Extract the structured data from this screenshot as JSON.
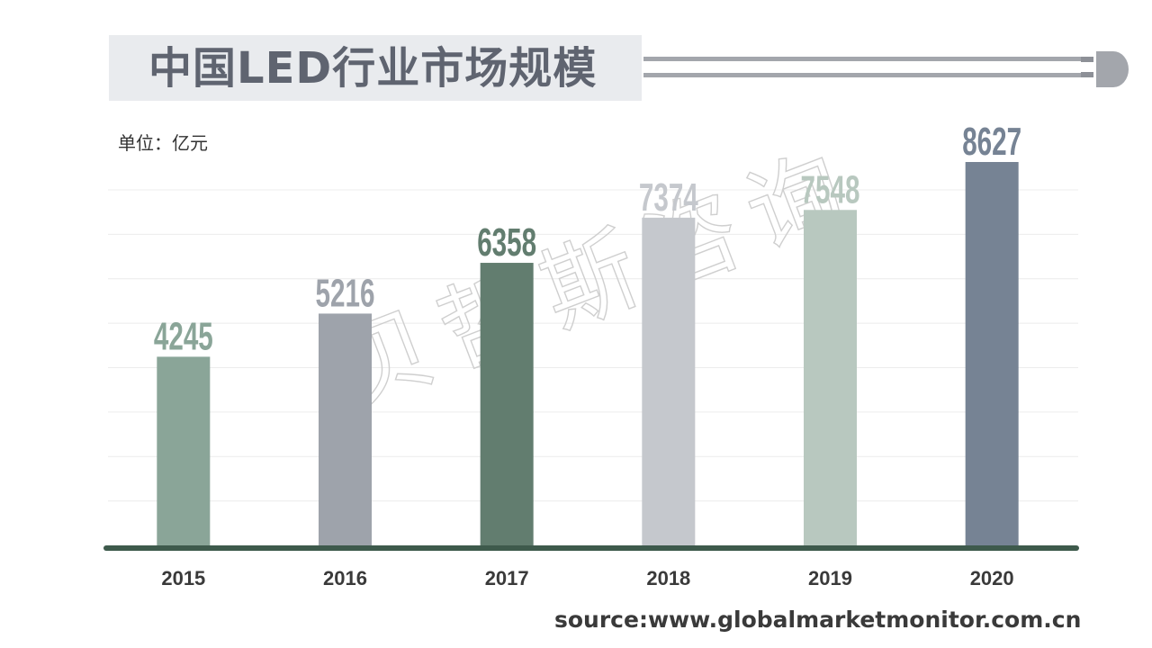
{
  "title": "中国LED行业市场规模",
  "unit_label": "单位：亿元",
  "watermark": "贝哲斯咨询",
  "source": "source:www.globalmarketmonitor.com.cn",
  "chart_data": {
    "type": "bar",
    "categories": [
      "2015",
      "2016",
      "2017",
      "2018",
      "2019",
      "2020"
    ],
    "values": [
      4245,
      5216,
      6358,
      7374,
      7548,
      8627
    ],
    "ylim": [
      0,
      9000
    ],
    "grid": true,
    "bar_colors": [
      "#8aa598",
      "#9ea3ab",
      "#627d6f",
      "#c5c8cd",
      "#b8c8bf",
      "#768394"
    ],
    "label_colors": [
      "#8aa598",
      "#9ea3ab",
      "#627d6f",
      "#c5c8cd",
      "#b8c8bf",
      "#768394"
    ]
  },
  "colors": {
    "axis": "#3e5a4c",
    "title_bg": "#e9ebee",
    "title_text": "#5f6470",
    "grid": "#ececec"
  }
}
